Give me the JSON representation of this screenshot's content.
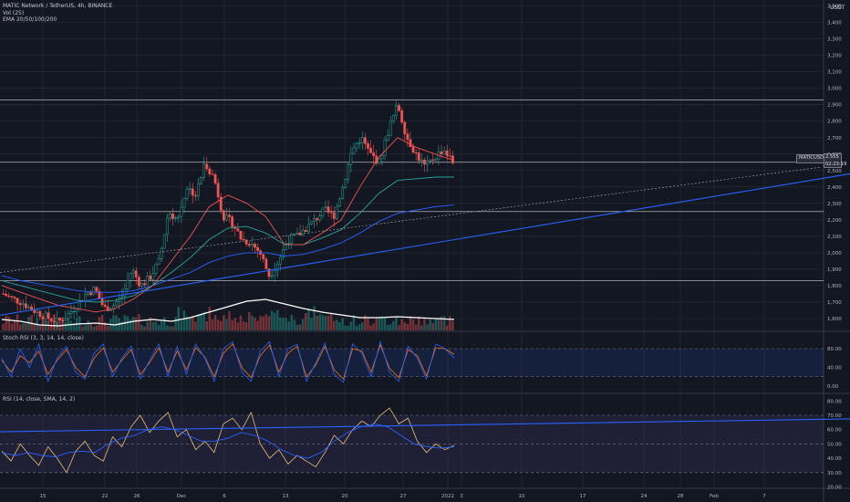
{
  "header": {
    "symbol_line": "MATIC Network / TetherUS, 4h, BINANCE",
    "vol_label": "Vol (25)",
    "ema_label": "EMA 20/50/100/200",
    "currency": "USDT"
  },
  "price_badge": {
    "symbol": "MATICUSDT",
    "price": "2.555",
    "countdown": "02:23:19"
  },
  "colors": {
    "background": "#131722",
    "grid": "#2a2e39",
    "up": "#26a69a",
    "down": "#ef5350",
    "ema20": "#ef5350",
    "ema50": "#26a69a",
    "ema100": "#2962ff",
    "trendline": "#2962ff",
    "stoch_k": "#2962ff",
    "stoch_d": "#ff6d00",
    "rsi": "#e6c07b",
    "rsi_ma": "#2962ff"
  },
  "chart_data": [
    {
      "type": "candlestick",
      "x_ticks": [
        "15",
        "22",
        "26",
        "Dec",
        "6",
        "13",
        "20",
        "27",
        "2022",
        "3",
        "10",
        "17",
        "24",
        "28",
        "Feb",
        "7"
      ],
      "y_ticks": [
        "3,500",
        "3,400",
        "3,300",
        "3,200",
        "3,100",
        "3,000",
        "2,900",
        "2,800",
        "2,700",
        "2,600",
        "2,500",
        "2,400",
        "2,300",
        "2,200",
        "2,100",
        "2,000",
        "1,900",
        "1,800",
        "1,700",
        "1,600"
      ],
      "ylim": [
        1.55,
        3.52
      ],
      "horizontal_levels": [
        2.93,
        2.55,
        2.25,
        1.83
      ],
      "close_path": [
        1.75,
        1.72,
        1.7,
        1.66,
        1.63,
        1.6,
        1.58,
        1.62,
        1.68,
        1.75,
        1.78,
        1.66,
        1.68,
        1.74,
        1.9,
        1.8,
        1.85,
        1.95,
        2.25,
        2.2,
        2.4,
        2.35,
        2.55,
        2.45,
        2.22,
        2.18,
        2.08,
        2.06,
        2.0,
        1.86,
        1.95,
        2.08,
        2.1,
        2.15,
        2.2,
        2.26,
        2.22,
        2.4,
        2.62,
        2.7,
        2.6,
        2.55,
        2.75,
        2.9,
        2.7,
        2.6,
        2.52,
        2.58,
        2.63,
        2.55
      ],
      "ema20_path": [
        1.8,
        1.76,
        1.72,
        1.68,
        1.66,
        1.64,
        1.66,
        1.72,
        1.8,
        1.95,
        2.1,
        2.28,
        2.35,
        2.3,
        2.22,
        2.05,
        2.05,
        2.12,
        2.2,
        2.4,
        2.58,
        2.7,
        2.64,
        2.6,
        2.56
      ],
      "ema50_path": [
        1.83,
        1.8,
        1.77,
        1.74,
        1.71,
        1.7,
        1.71,
        1.74,
        1.8,
        1.88,
        1.97,
        2.08,
        2.15,
        2.16,
        2.12,
        2.05,
        2.05,
        2.09,
        2.14,
        2.24,
        2.36,
        2.44,
        2.45,
        2.46,
        2.46
      ],
      "ema100_path": [
        1.86,
        1.83,
        1.81,
        1.79,
        1.77,
        1.76,
        1.76,
        1.77,
        1.8,
        1.84,
        1.88,
        1.94,
        1.98,
        2.0,
        2.0,
        1.98,
        1.99,
        2.02,
        2.06,
        2.12,
        2.19,
        2.24,
        2.26,
        2.28,
        2.29
      ],
      "trendline": {
        "from": [
          0,
          1.62
        ],
        "to": [
          932,
          2.48
        ]
      },
      "dotted_trendline": {
        "from": [
          0,
          1.88
        ],
        "to": [
          900,
          2.52
        ]
      }
    },
    {
      "type": "line",
      "title": "Stoch RSI (3, 3, 14, 14, close)",
      "y_ticks": [
        "80.00",
        "40.00",
        "0.00"
      ],
      "ylim": [
        0,
        100
      ],
      "bands": [
        80,
        20
      ],
      "k_path": [
        60,
        20,
        80,
        40,
        90,
        10,
        60,
        85,
        30,
        15,
        70,
        90,
        20,
        60,
        85,
        15,
        55,
        90,
        20,
        85,
        25,
        90,
        60,
        10,
        80,
        95,
        30,
        10,
        75,
        95,
        20,
        80,
        90,
        10,
        50,
        92,
        25,
        8,
        90,
        70,
        20,
        95,
        30,
        10,
        85,
        60,
        15,
        90,
        80,
        60
      ],
      "d_path": [
        55,
        30,
        65,
        50,
        75,
        25,
        55,
        78,
        40,
        20,
        60,
        82,
        30,
        55,
        78,
        25,
        50,
        82,
        30,
        75,
        35,
        82,
        62,
        20,
        70,
        90,
        40,
        18,
        65,
        88,
        30,
        70,
        85,
        20,
        45,
        85,
        35,
        15,
        80,
        75,
        30,
        88,
        38,
        18,
        78,
        65,
        22,
        82,
        80,
        68
      ]
    },
    {
      "type": "line",
      "title": "RSI (14, close, SMA, 14, 2)",
      "y_ticks": [
        "80.00",
        "70.00",
        "60.00",
        "50.00",
        "40.00",
        "30.00",
        "20.00"
      ],
      "ylim": [
        15,
        85
      ],
      "bands": [
        70,
        50,
        30
      ],
      "rsi_path": [
        45,
        38,
        50,
        42,
        35,
        48,
        40,
        30,
        45,
        52,
        42,
        38,
        55,
        48,
        62,
        70,
        58,
        66,
        72,
        55,
        60,
        46,
        52,
        44,
        64,
        68,
        60,
        72,
        50,
        40,
        46,
        36,
        42,
        38,
        34,
        44,
        56,
        50,
        60,
        66,
        62,
        70,
        75,
        64,
        68,
        52,
        44,
        50,
        46,
        49
      ],
      "rsi_ma_path": [
        44,
        42,
        44,
        42,
        41,
        44,
        45,
        44,
        50,
        54,
        56,
        60,
        62,
        60,
        56,
        52,
        52,
        54,
        58,
        56,
        52,
        46,
        42,
        40,
        44,
        52,
        58,
        62,
        64,
        62,
        56,
        50,
        48,
        47,
        48
      ],
      "trendline": {
        "from": [
          0,
          58.5
        ],
        "to": [
          932,
          67.5
        ]
      }
    }
  ]
}
